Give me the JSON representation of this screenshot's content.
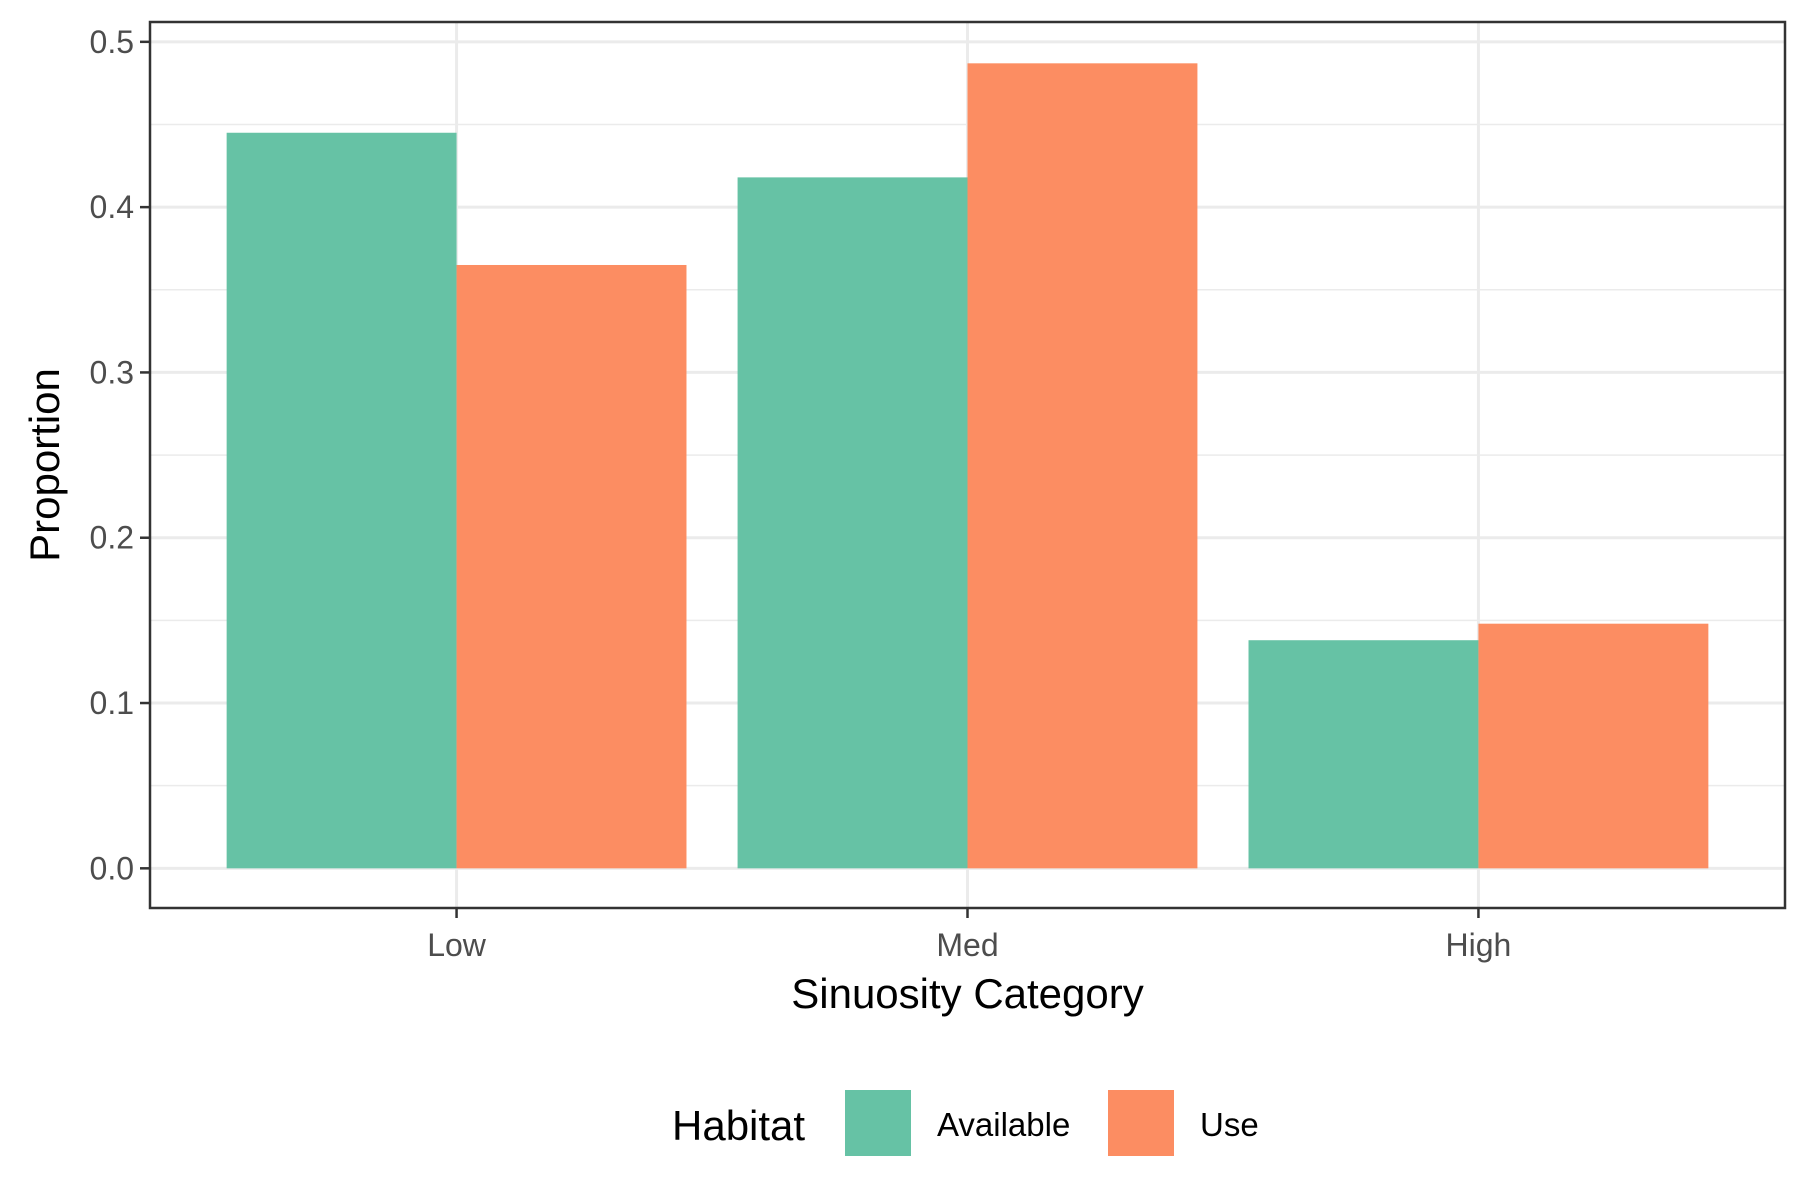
{
  "chart_data": {
    "type": "bar",
    "categories": [
      "Low",
      "Med",
      "High"
    ],
    "series": [
      {
        "name": "Available",
        "color": "#66c2a5",
        "values": [
          0.445,
          0.418,
          0.138
        ]
      },
      {
        "name": "Use",
        "color": "#fc8d62",
        "values": [
          0.365,
          0.487,
          0.148
        ]
      }
    ],
    "xlabel": "Sinuosity Category",
    "ylabel": "Proportion",
    "ylim": [
      -0.024,
      0.512
    ],
    "yticks": [
      0.0,
      0.1,
      0.2,
      0.3,
      0.4,
      0.5
    ],
    "ytick_labels": [
      "0.0",
      "0.1",
      "0.2",
      "0.3",
      "0.4",
      "0.5"
    ],
    "grid": true,
    "legend": {
      "title": "Habitat",
      "position": "bottom"
    }
  }
}
